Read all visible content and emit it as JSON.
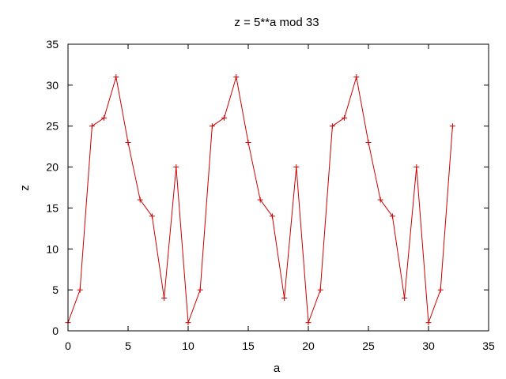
{
  "chart_data": {
    "type": "line",
    "title": "z = 5**a mod 33",
    "xlabel": "a",
    "ylabel": "z",
    "xlim": [
      0,
      35
    ],
    "ylim": [
      0,
      35
    ],
    "xticks": [
      0,
      5,
      10,
      15,
      20,
      25,
      30,
      35
    ],
    "yticks": [
      0,
      5,
      10,
      15,
      20,
      25,
      30,
      35
    ],
    "grid": false,
    "marker": "plus",
    "series": [
      {
        "color": "#cc0000",
        "x": [
          0,
          1,
          2,
          3,
          4,
          5,
          6,
          7,
          8,
          9,
          10,
          11,
          12,
          13,
          14,
          15,
          16,
          17,
          18,
          19,
          20,
          21,
          22,
          23,
          24,
          25,
          26,
          27,
          28,
          29,
          30,
          31,
          32
        ],
        "y": [
          1,
          5,
          25,
          26,
          31,
          23,
          16,
          14,
          4,
          20,
          1,
          5,
          25,
          26,
          31,
          23,
          16,
          14,
          4,
          20,
          1,
          5,
          25,
          26,
          31,
          23,
          16,
          14,
          4,
          20,
          1,
          5,
          25
        ]
      }
    ]
  }
}
